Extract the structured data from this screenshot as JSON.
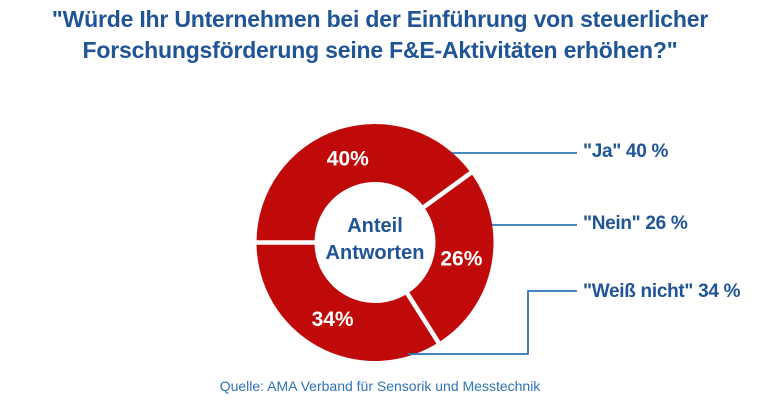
{
  "title": {
    "line1": "\"Würde Ihr Unternehmen bei der Einführung von steuerlicher",
    "line2": "Forschungsförderung seine F&E-Aktivitäten erhöhen?\""
  },
  "source": "Quelle: AMA Verband für Sensorik und Messtechnik",
  "chart_data": {
    "type": "pie",
    "subtype": "donut",
    "title": "\"Würde Ihr Unternehmen bei der Einführung von steuerlicher Forschungsförderung seine F&E-Aktivitäten erhöhen?\"",
    "categories": [
      "Ja",
      "Nein",
      "Weiß nicht"
    ],
    "values": [
      40,
      26,
      34
    ],
    "unit": "%",
    "slice_labels": [
      "40%",
      "26%",
      "34%"
    ],
    "legend_labels": [
      "\"Ja\" 40 %",
      "\"Nein\" 26 %",
      "\"Weiß nicht\" 34 %"
    ],
    "center_label": "Anteil Antworten",
    "legend_position": "right",
    "start_angle_deg": 180,
    "direction": "clockwise",
    "colors": {
      "slice": "#C00A0A",
      "separator": "#FFFFFF",
      "slice_label_text": "#FFFFFF",
      "center_text": "#1F5496",
      "legend_text": "#1F5496",
      "leader_line": "#2E74B5",
      "title_text": "#1F5496",
      "source_text": "#2E74B5"
    }
  }
}
